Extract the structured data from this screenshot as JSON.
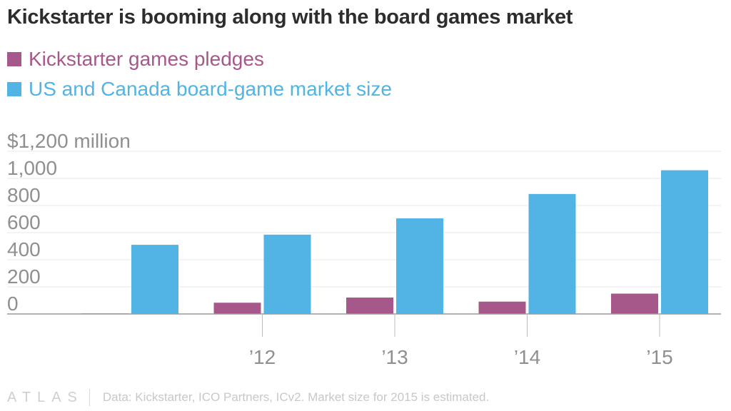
{
  "title": "Kickstarter is booming along with the board games market",
  "footer": {
    "brand": "ATLAS",
    "source": "Data: Kickstarter, ICO Partners, ICv2. Market size for 2015 is estimated."
  },
  "colors": {
    "kickstarter": "#a7588a",
    "market": "#52b3e5",
    "axis_text": "#8f8f8f",
    "grid": "#e8e8e8"
  },
  "chart_data": {
    "type": "bar",
    "title": "Kickstarter is booming along with the board games market",
    "categories": [
      "2011",
      "2012",
      "2013",
      "2014",
      "2015"
    ],
    "tick_labels": [
      "",
      "’12",
      "’13",
      "’14",
      "’15"
    ],
    "series": [
      {
        "name": "Kickstarter games pledges",
        "color": "#a7588a",
        "values": [
          4,
          83,
          121,
          91,
          150
        ]
      },
      {
        "name": "US and Canada board-game market size",
        "color": "#52b3e5",
        "values": [
          510,
          585,
          705,
          885,
          1060
        ]
      }
    ],
    "ylim": [
      0,
      1200
    ],
    "y_ticks": [
      0,
      200,
      400,
      600,
      800,
      1000,
      1200
    ],
    "y_tick_labels": [
      "0",
      "200",
      "400",
      "600",
      "800",
      "1,000",
      "$1,200 million"
    ],
    "grid": true,
    "legend_position": "top-left"
  }
}
